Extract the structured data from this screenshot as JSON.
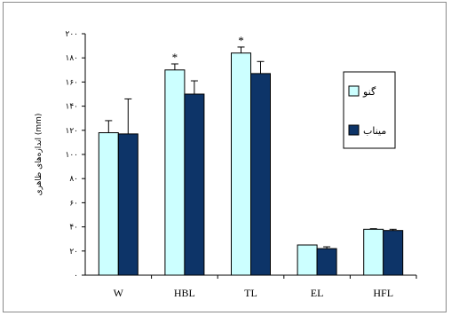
{
  "chart_data": {
    "type": "bar",
    "categories": [
      "W",
      "HBL",
      "TL",
      "EL",
      "HFL"
    ],
    "series": [
      {
        "name": "گنو",
        "color": "#ccffff",
        "values": [
          118,
          170,
          184,
          25,
          38
        ],
        "errors": [
          10,
          5,
          5,
          0,
          0.5
        ]
      },
      {
        "name": "میناب",
        "color": "#0d3468",
        "values": [
          117,
          150,
          167,
          22,
          37
        ],
        "errors": [
          29,
          11,
          10,
          1.5,
          1
        ]
      }
    ],
    "significance": [
      {
        "category": "HBL",
        "label": "*"
      },
      {
        "category": "TL",
        "label": "*"
      }
    ],
    "ylim": [
      0,
      200
    ],
    "yticks": [
      "۰",
      "۲۰",
      "۴۰",
      "۶۰",
      "۸۰",
      "۱۰۰",
      "۱۲۰",
      "۱۴۰",
      "۱۶۰",
      "۱۸۰",
      "۲۰۰"
    ],
    "ylabel": "اندازه‌های ظاهری (mm)",
    "xlabel": "",
    "legend_position": "right",
    "grid": false
  }
}
